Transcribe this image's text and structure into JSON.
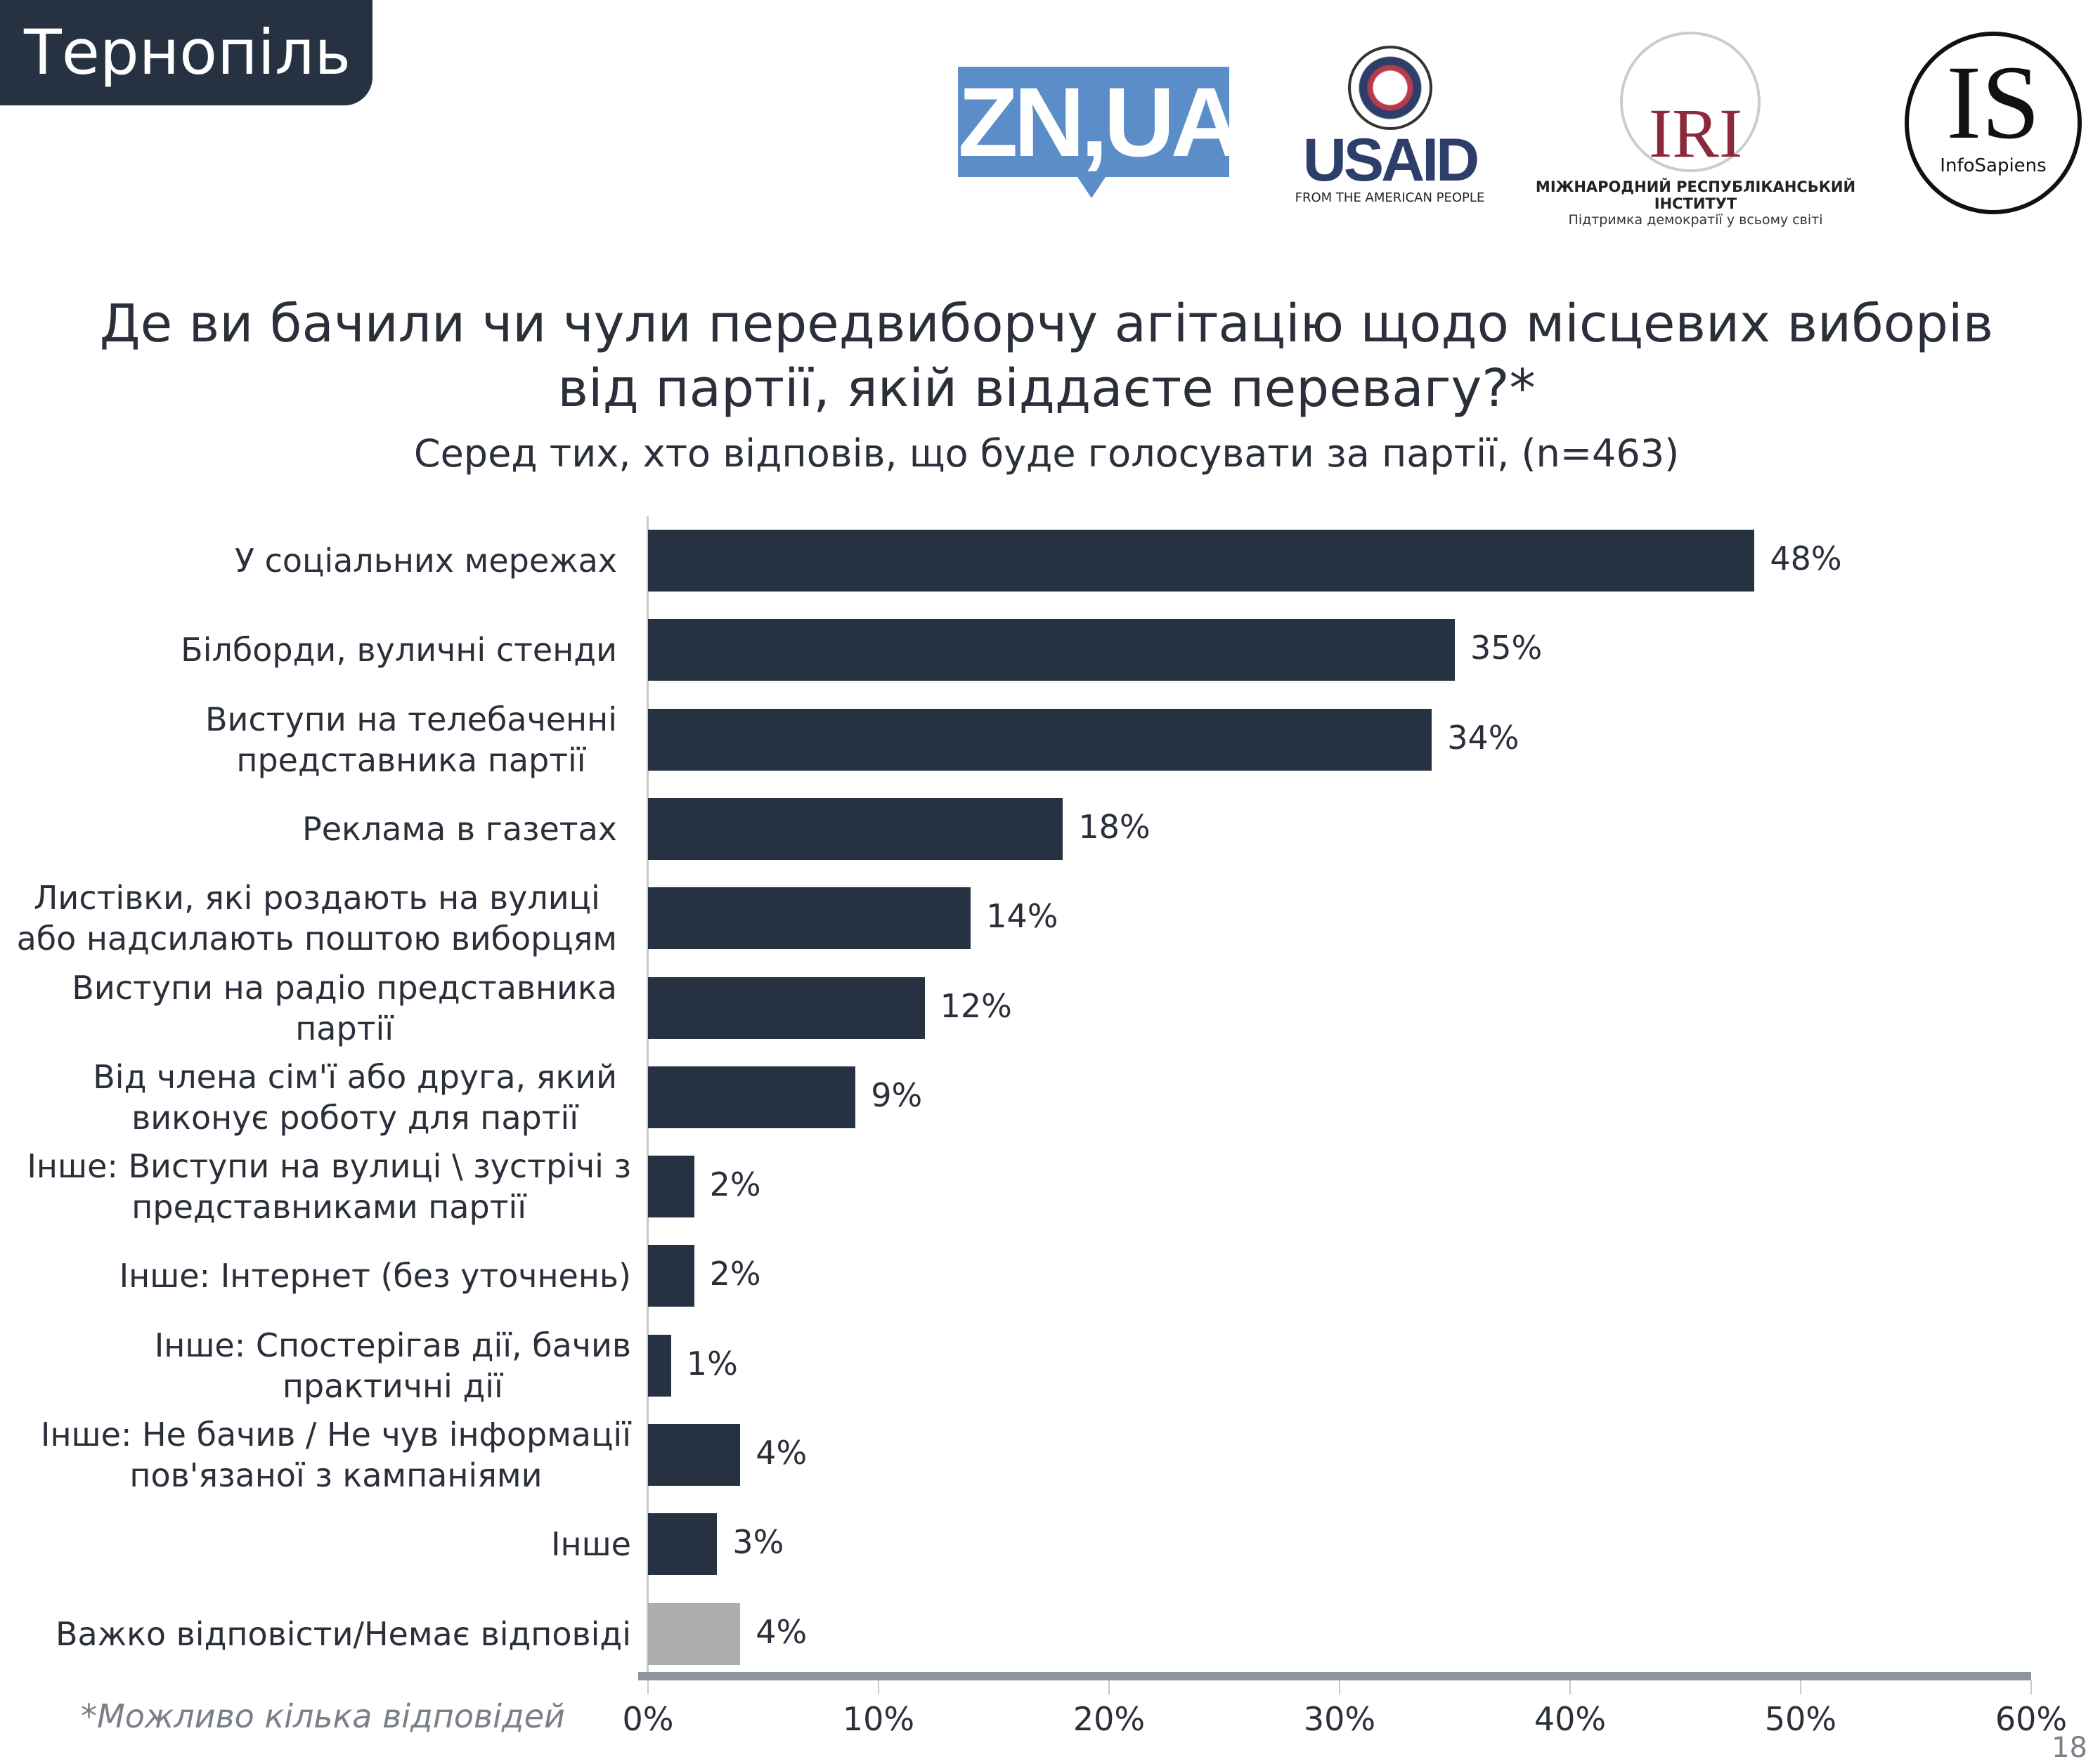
{
  "header": {
    "region": "Тернопіль"
  },
  "logos": {
    "znua": "ZN,UA",
    "usaid": "USAID",
    "usaid_tagline": "FROM THE AMERICAN PEOPLE",
    "iri": "IRI",
    "iri_name": "МІЖНАРОДНИЙ РЕСПУБЛІКАНСЬКИЙ ІНСТИТУТ",
    "iri_tagline": "Підтримка демократії у всьому світі",
    "is": "IS",
    "is_name": "InfoSapiens"
  },
  "chart_data": {
    "type": "bar",
    "orientation": "horizontal",
    "title_line1": "Де ви бачили чи чули передвиборчу агітацію щодо місцевих виборів",
    "title_line2": "від партії, якій віддаєте перевагу?*",
    "subtitle": "Серед тих, хто відповів, що буде голосувати за партії, (n=463)",
    "categories": [
      [
        "У соціальних мережах"
      ],
      [
        "Білборди, вуличні стенди"
      ],
      [
        "Виступи на телебаченні",
        "представника партії"
      ],
      [
        "Реклама в газетах"
      ],
      [
        "Листівки, які роздають на вулиці",
        "або надсилають поштою виборцям"
      ],
      [
        "Виступи на радіо представника",
        "партії"
      ],
      [
        "Від члена сім'ї або друга, який",
        "виконує роботу для партії"
      ],
      [
        "Інше: Виступи на вулиці \\ зустрічі з",
        "представниками партії"
      ],
      [
        "Інше: Інтернет (без уточнень)"
      ],
      [
        "Інше: Спостерігав дії, бачив",
        "практичні дії"
      ],
      [
        "Інше: Не бачив / Не чув інформації",
        "пов'язаної з кампаніями"
      ],
      [
        "Інше"
      ],
      [
        "Важко відповісти/Немає відповіді"
      ]
    ],
    "values": [
      48,
      35,
      34,
      18,
      14,
      12,
      9,
      2,
      2,
      1,
      4,
      3,
      4
    ],
    "value_labels": [
      "48%",
      "35%",
      "34%",
      "18%",
      "14%",
      "12%",
      "9%",
      "2%",
      "2%",
      "1%",
      "4%",
      "3%",
      "4%"
    ],
    "colors": [
      "#263142",
      "#263142",
      "#263142",
      "#263142",
      "#263142",
      "#263142",
      "#263142",
      "#263142",
      "#263142",
      "#263142",
      "#263142",
      "#263142",
      "#adadad"
    ],
    "xlim": [
      0,
      60
    ],
    "xticks": [
      "0%",
      "10%",
      "20%",
      "30%",
      "40%",
      "50%",
      "60%"
    ],
    "grid": false,
    "footnote": "*Можливо кілька відповідей",
    "page_number": "18"
  }
}
